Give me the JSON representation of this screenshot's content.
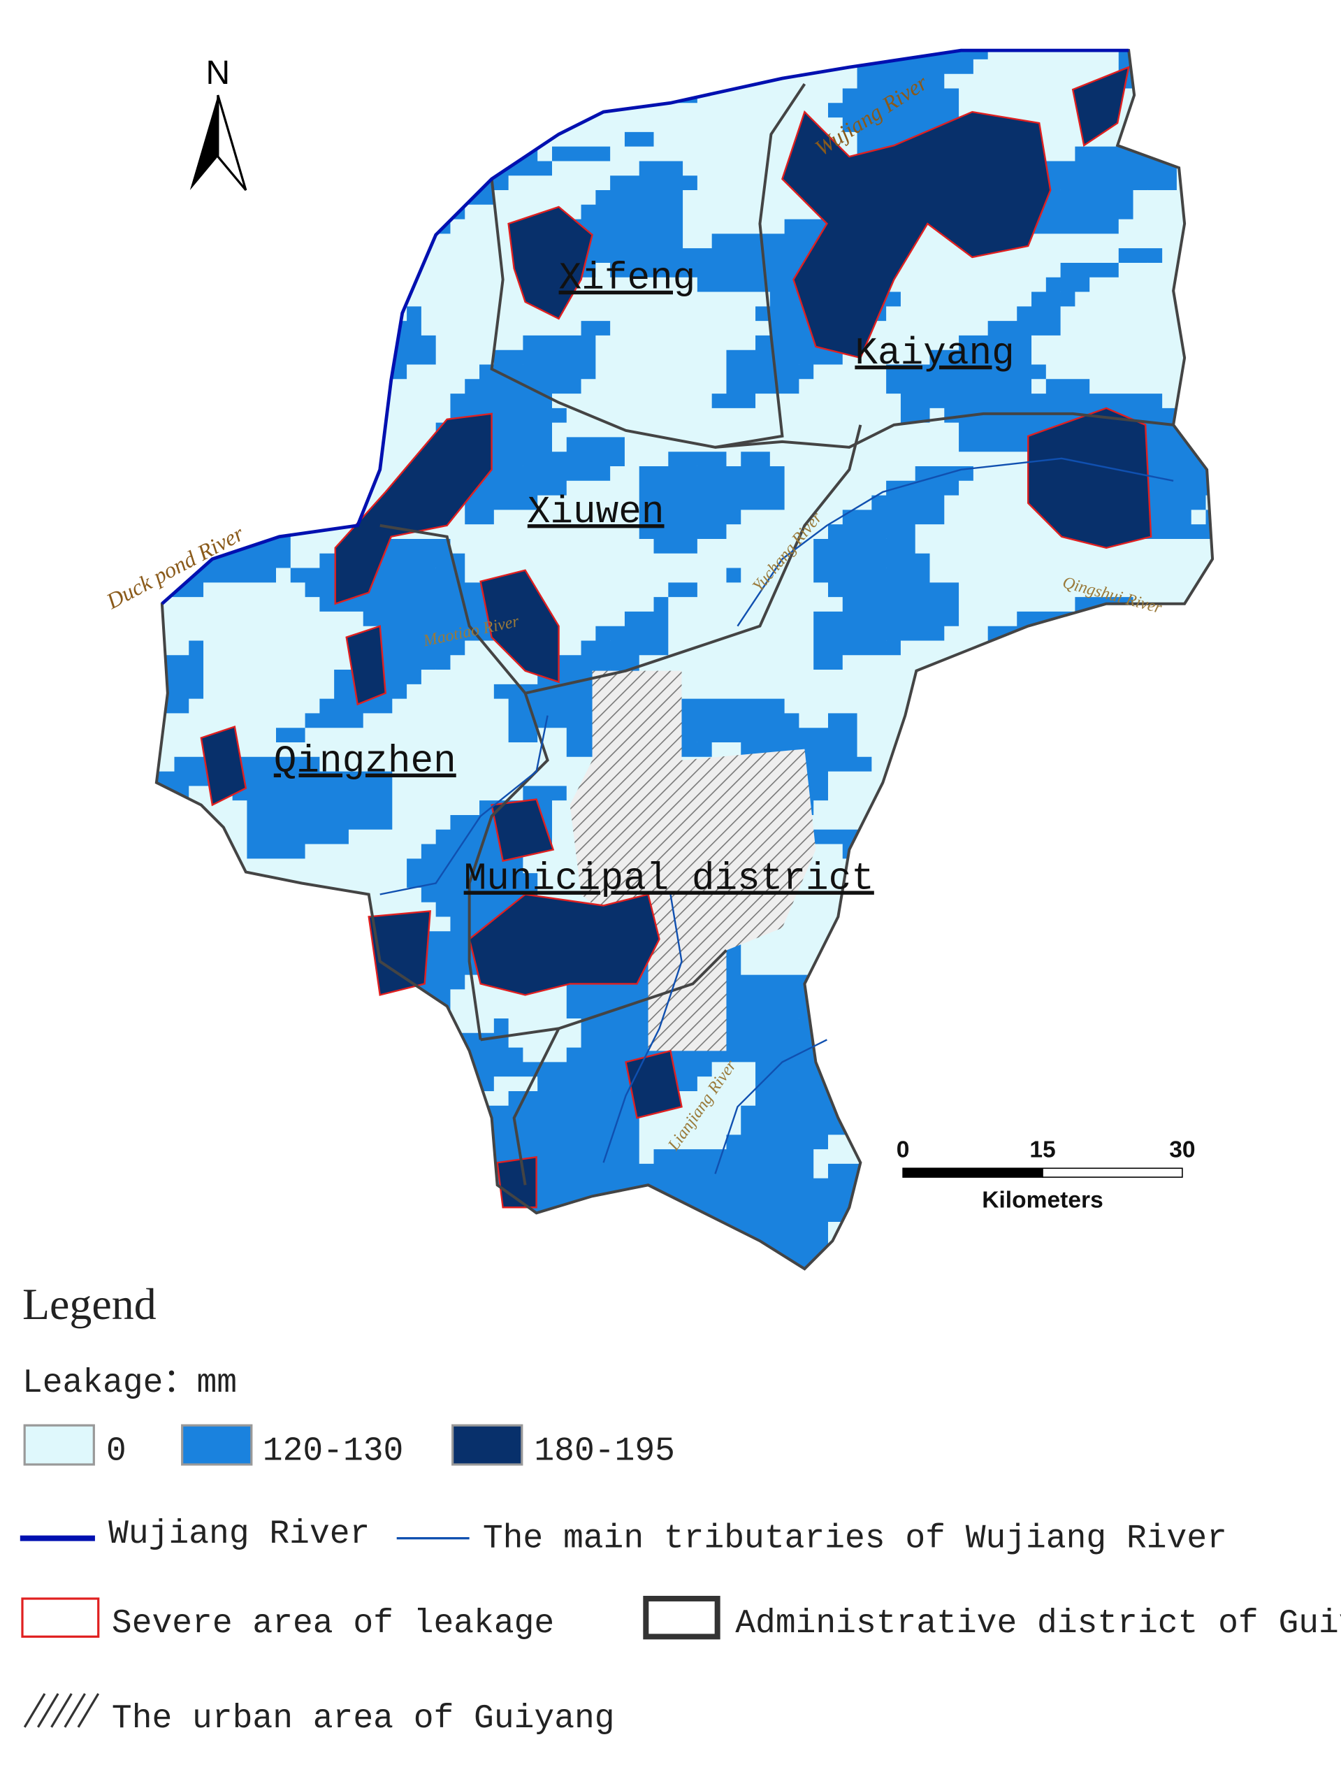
{
  "map": {
    "north_label": "N",
    "places": [
      "Xifeng",
      "Kaiyang",
      "Xiuwen",
      "Qingzhen",
      "Municipal district"
    ],
    "rivers": [
      "Wujiang River",
      "Duck pond River",
      "Qingshui River",
      "Maotiao River",
      "Yuchang River",
      "Lianjiang River"
    ],
    "scale_bar": {
      "ticks": [
        0,
        15,
        30
      ],
      "unit": "Kilometers"
    }
  },
  "legend": {
    "title": "Legend",
    "subtitle": "Leakage：mm",
    "classes": [
      "0",
      "120-130",
      "180-195"
    ],
    "items": [
      "Wujiang River",
      "The main tributaries of Wujiang River",
      "Severe area of leakage",
      "Administrative district of Guiyang",
      "The urban area of Guiyang"
    ]
  }
}
